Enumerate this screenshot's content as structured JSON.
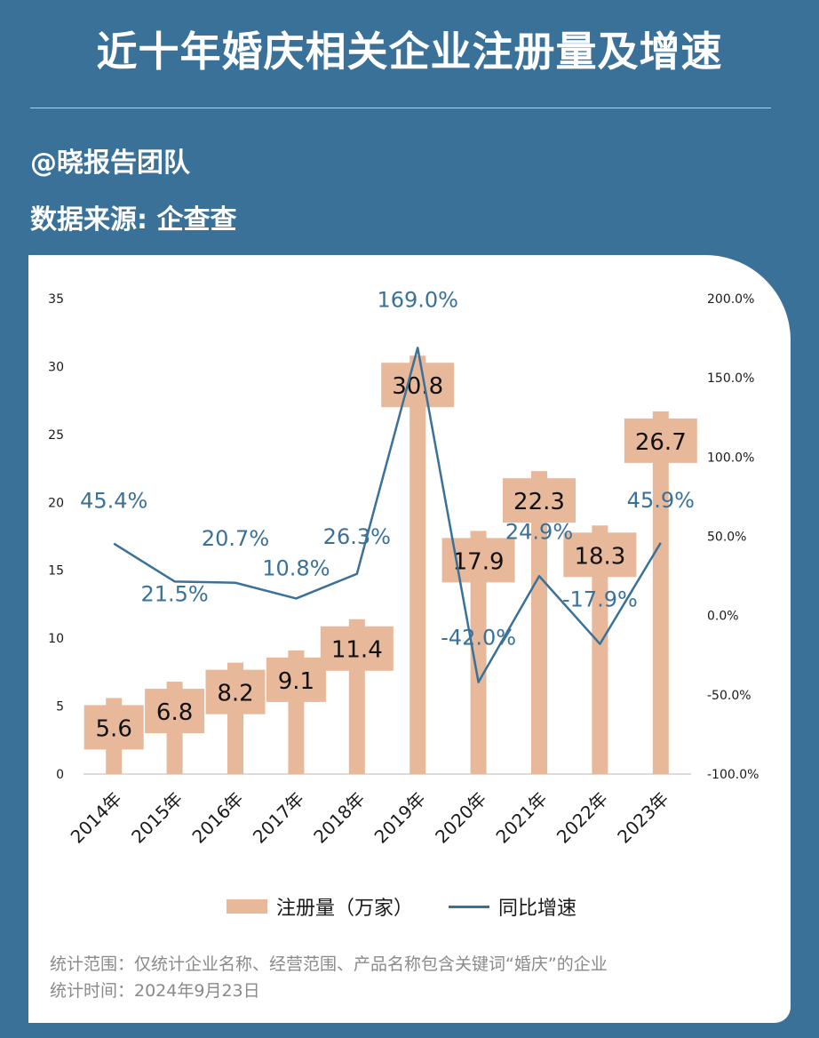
{
  "header": {
    "title": "近十年婚庆相关企业注册量及增速",
    "author": "@晓报告团队",
    "source": "数据来源: 企查查"
  },
  "legend": {
    "bar_label": "注册量（万家）",
    "line_label": "同比增速"
  },
  "footnotes": {
    "scope": "统计范围：仅统计企业名称、经营范围、产品名称包含关键词“婚庆”的企业",
    "time": "统计时间：2024年9月23日"
  },
  "colors": {
    "background": "#3a7199",
    "bar": "#e8b89b",
    "line": "#3a7199",
    "line_label": "#3a7199"
  },
  "chart_data": {
    "type": "bar",
    "categories": [
      "2014年",
      "2015年",
      "2016年",
      "2017年",
      "2018年",
      "2019年",
      "2020年",
      "2021年",
      "2022年",
      "2023年"
    ],
    "series": [
      {
        "name": "注册量（万家）",
        "type": "bar",
        "axis": "left",
        "values": [
          5.6,
          6.8,
          8.2,
          9.1,
          11.4,
          30.8,
          17.9,
          22.3,
          18.3,
          26.7
        ],
        "labels": [
          "5.6",
          "6.8",
          "8.2",
          "9.1",
          "11.4",
          "30.8",
          "17.9",
          "22.3",
          "18.3",
          "26.7"
        ]
      },
      {
        "name": "同比增速",
        "type": "line",
        "axis": "right",
        "values": [
          45.4,
          21.5,
          20.7,
          10.8,
          26.3,
          169.0,
          -42.0,
          24.9,
          -17.9,
          45.9
        ],
        "labels": [
          "45.4%",
          "21.5%",
          "20.7%",
          "10.8%",
          "26.3%",
          "169.0%",
          "-42.0%",
          "24.9%",
          "-17.9%",
          "45.9%"
        ]
      }
    ],
    "y_left": {
      "min": 0,
      "max": 35,
      "ticks": [
        0,
        5,
        10,
        15,
        20,
        25,
        30,
        35
      ],
      "tick_labels": [
        "0",
        "5",
        "10",
        "15",
        "20",
        "25",
        "30",
        "35"
      ]
    },
    "y_right": {
      "min": -100,
      "max": 200,
      "ticks": [
        -100,
        -50,
        0,
        50,
        100,
        150,
        200
      ],
      "tick_labels": [
        "-100.0%",
        "-50.0%",
        "0.0%",
        "50.0%",
        "100.0%",
        "150.0%",
        "200.0%"
      ]
    },
    "grid": false,
    "legend_position": "bottom"
  }
}
